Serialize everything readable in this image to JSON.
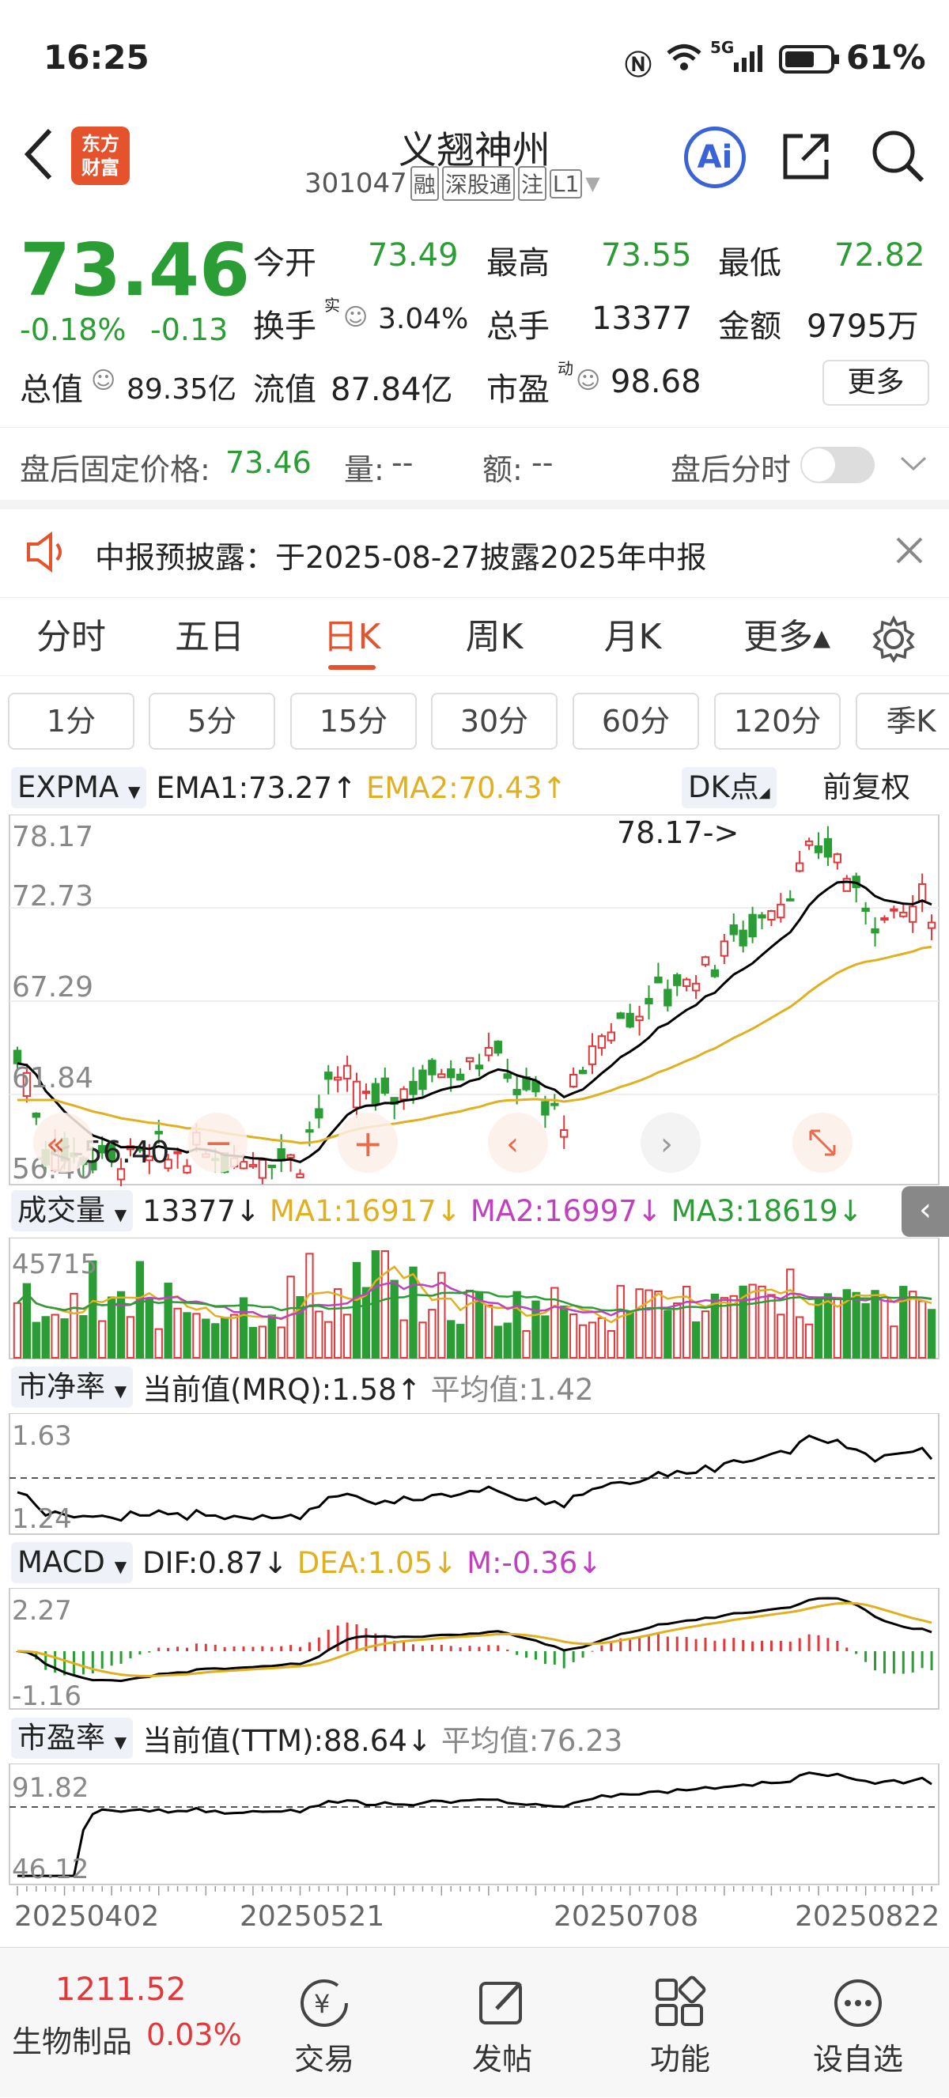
{
  "status": {
    "time": "16:25",
    "battery": "61%",
    "network": "5G"
  },
  "header": {
    "logo_line1": "东方",
    "logo_line2": "财富",
    "stock_name": "义翘神州",
    "stock_code": "301047",
    "tags": [
      "融",
      "深股通",
      "注",
      "L1"
    ],
    "ai_label": "Ai"
  },
  "quote": {
    "price": "73.46",
    "change_pct": "-0.18%",
    "change": "-0.13",
    "open_label": "今开",
    "open": "73.49",
    "high_label": "最高",
    "high": "73.55",
    "low_label": "最低",
    "low": "72.82",
    "turnover_label": "换手",
    "turnover_sup": "实",
    "turnover": "3.04%",
    "volume_label": "总手",
    "volume": "13377",
    "amount_label": "金额",
    "amount": "9795万",
    "mktcap_label": "总值",
    "mktcap": "89.35亿",
    "float_label": "流值",
    "float_cap": "87.84亿",
    "pe_label": "市盈",
    "pe_sup": "动",
    "pe": "98.68",
    "more": "更多"
  },
  "afterhours": {
    "fixed_label": "盘后固定价格:",
    "fixed_price": "73.46",
    "vol_label": "量:",
    "vol": "--",
    "amt_label": "额:",
    "amt": "--",
    "toggle_label": "盘后分时"
  },
  "notice": {
    "text": "中报预披露：于2025-08-27披露2025年中报"
  },
  "tabs": [
    "分时",
    "五日",
    "日K",
    "周K",
    "月K",
    "更多▴"
  ],
  "active_tab": "日K",
  "periods": [
    "1分",
    "5分",
    "15分",
    "30分",
    "60分",
    "120分",
    "季K"
  ],
  "kline": {
    "indicator": "EXPMA",
    "ema1": "EMA1:73.27↑",
    "ema2": "EMA2:70.43↑",
    "dk": "DK点",
    "adj": "前复权",
    "ticks": [
      "78.17",
      "72.73",
      "67.29",
      "61.84",
      "56.40"
    ],
    "max_label": "78.17->",
    "min_label": "<-56.40",
    "colors": {
      "up": "#e0383b",
      "down": "#2a9d34",
      "ema1": "#000000",
      "ema2": "#e0b020"
    }
  },
  "volume": {
    "name": "成交量",
    "value": "13377↓",
    "ma1": "MA1:16917↓",
    "ma2": "MA2:16997↓",
    "ma3": "MA3:18619↓",
    "tick": "45715"
  },
  "pb": {
    "name": "市净率",
    "current": "当前值(MRQ):1.58↑",
    "avg": "平均值:1.42",
    "ticks": [
      "1.63",
      "1.24"
    ]
  },
  "macd": {
    "name": "MACD",
    "dif": "DIF:0.87↓",
    "dea": "DEA:1.05↓",
    "m": "M:-0.36↓",
    "ticks": [
      "2.27",
      "-1.16"
    ]
  },
  "pe_ttm": {
    "name": "市盈率",
    "current": "当前值(TTM):88.64↓",
    "avg": "平均值:76.23",
    "ticks": [
      "91.82",
      "46.12"
    ]
  },
  "dates": [
    "20250402",
    "20250521",
    "20250708",
    "20250822"
  ],
  "bottom": {
    "index_value": "1211.52",
    "index_name": "生物制品",
    "index_change": "0.03%",
    "items": [
      "交易",
      "发帖",
      "功能",
      "设自选"
    ]
  }
}
